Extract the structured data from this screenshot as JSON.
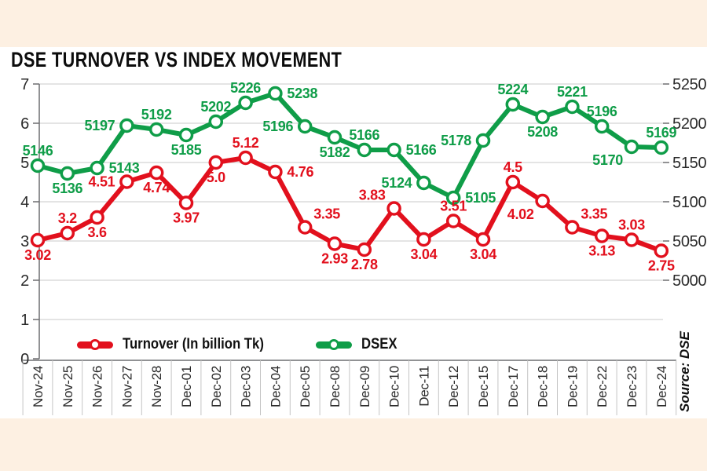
{
  "title": "DSE TURNOVER VS INDEX MOVEMENT",
  "source_label": "Source: DSE",
  "colors": {
    "background": "#fdf0e2",
    "card": "#ffffff",
    "turnover": "#e2101d",
    "dsex": "#0f9d48",
    "grid": "#c8c8c8",
    "axis": "#6d6e71",
    "separator": "#c4c4c4",
    "tick_text": "#2a2a2a",
    "legend_text": "#111111"
  },
  "chart_data": {
    "type": "line",
    "title": "DSE TURNOVER VS INDEX MOVEMENT",
    "xlabel": "",
    "grid": "horizontal",
    "legend_position": "bottom-inside",
    "categories": [
      "Nov-24",
      "Nov-25",
      "Nov-26",
      "Nov-27",
      "Nov-28",
      "Dec-01",
      "Dec-02",
      "Dec-03",
      "Dec-04",
      "Dec-05",
      "Dec-08",
      "Dec-09",
      "Dec-10",
      "Dec-11",
      "Dec-12",
      "Dec-15",
      "Dec-17",
      "Dec-18",
      "Dec-19",
      "Dec-22",
      "Dec-23",
      "Dec-24"
    ],
    "series": [
      {
        "name": "Turnover (In billion Tk)",
        "axis": "left",
        "color": "#e2101d",
        "values": [
          3.02,
          3.2,
          3.6,
          4.51,
          4.74,
          3.97,
          5.0,
          5.12,
          4.76,
          3.35,
          2.93,
          2.78,
          3.83,
          3.04,
          3.51,
          3.04,
          4.5,
          4.02,
          3.35,
          3.13,
          3.03,
          2.75
        ],
        "labels": [
          "3.02",
          "3.2",
          "3.6",
          "4.51",
          "4.74",
          "3.97",
          "5.0",
          "5.12",
          "4.76",
          "3.35",
          "2.93",
          "2.78",
          "3.83",
          "3.04",
          "3.51",
          "3.04",
          "4.5",
          "4.02",
          "3.35",
          "3.13",
          "3.03",
          "2.75"
        ],
        "label_pos": [
          "below",
          "above",
          "below",
          "left",
          "below",
          "below",
          "below",
          "above",
          "right",
          "above-right",
          "below",
          "below",
          "above-left",
          "below",
          "above",
          "below",
          "above",
          "below-left",
          "above-right",
          "below",
          "above",
          "below"
        ]
      },
      {
        "name": "DSEX",
        "axis": "right",
        "color": "#0f9d48",
        "values": [
          5146,
          5136,
          5143,
          5197,
          5192,
          5185,
          5202,
          5226,
          5238,
          5196,
          5182,
          5166,
          5166,
          5124,
          5105,
          5178,
          5224,
          5208,
          5221,
          5196,
          5170,
          5169
        ],
        "labels": [
          "5146",
          "5136",
          "5143",
          "5197",
          "5192",
          "5185",
          "5202",
          "5226",
          "5238",
          "5196",
          "5182",
          "5166",
          "5166",
          "5124",
          "5105",
          "5178",
          "5224",
          "5208",
          "5221",
          "5196",
          "5170",
          "5169"
        ],
        "label_pos": [
          "above",
          "below",
          "right",
          "left",
          "above",
          "below",
          "above",
          "above",
          "right",
          "left",
          "below",
          "above",
          "right",
          "left",
          "right",
          "left",
          "above",
          "below",
          "above",
          "above",
          "below-left",
          "above"
        ]
      }
    ],
    "left_axis": {
      "min": 0,
      "max": 7,
      "tick_interval": 1,
      "ticks": [
        "0",
        "1",
        "2",
        "3",
        "4",
        "5",
        "6",
        "7"
      ]
    },
    "right_axis": {
      "min": 5000,
      "max": 5250,
      "tick_interval": 50,
      "ticks": [
        "5000",
        "5050",
        "5100",
        "5150",
        "5200",
        "5250"
      ]
    }
  }
}
